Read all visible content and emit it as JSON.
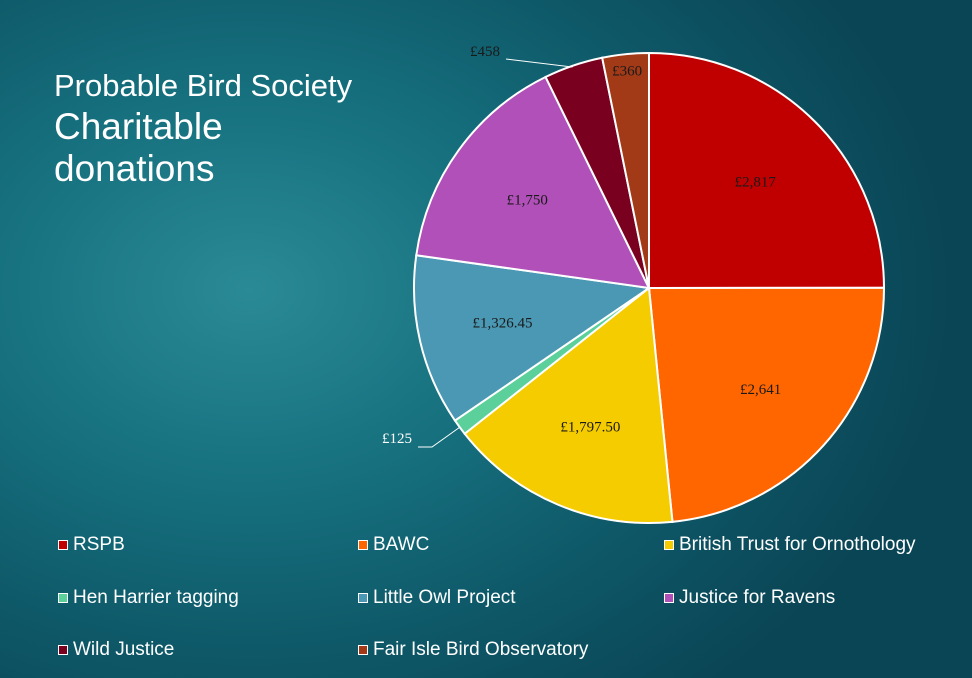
{
  "title": {
    "organization": "Probable Bird Society",
    "subtitle": "Charitable donations"
  },
  "chart_data": {
    "type": "pie",
    "title": "Probable Bird Society Charitable donations",
    "unit": "£",
    "legend_position": "bottom",
    "start_angle_deg": 0,
    "direction": "clockwise",
    "slices": [
      {
        "name": "RSPB",
        "value": 2817,
        "label": "£2,817",
        "color": "#c00000"
      },
      {
        "name": "BAWC",
        "value": 2641,
        "label": "£2,641",
        "color": "#ff6600"
      },
      {
        "name": "British Trust for Ornothology",
        "value": 1797.5,
        "label": "£1,797.50",
        "color": "#f5cc00"
      },
      {
        "name": "Hen Harrier tagging",
        "value": 125,
        "label": "£125",
        "color": "#5bd09a"
      },
      {
        "name": "Little Owl Project",
        "value": 1326.45,
        "label": "£1,326.45",
        "color": "#4a98b3"
      },
      {
        "name": "Justice for Ravens",
        "value": 1750,
        "label": "£1,750",
        "color": "#b050b8"
      },
      {
        "name": "Wild Justice",
        "value": 458,
        "label": "£458",
        "color": "#7a0020"
      },
      {
        "name": "Fair Isle Bird Observatory",
        "value": 360,
        "label": "£360",
        "color": "#a33a17"
      }
    ]
  }
}
